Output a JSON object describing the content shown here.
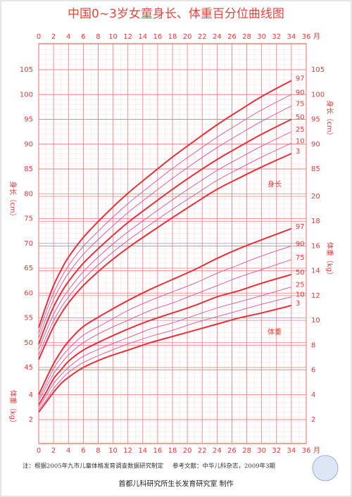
{
  "chart_data": {
    "type": "line",
    "title": "中国0~3岁女童身长、体重百分位曲线图",
    "x": [
      0,
      1,
      2,
      3,
      4,
      6,
      9,
      12,
      15,
      18,
      21,
      24,
      27,
      30,
      34
    ],
    "xlim": [
      0,
      36
    ],
    "xticks": [
      0,
      2,
      4,
      6,
      8,
      10,
      12,
      14,
      16,
      18,
      20,
      22,
      24,
      26,
      28,
      30,
      32,
      34,
      36
    ],
    "x_unit": "月",
    "length": {
      "axis_label": "身长（cm）",
      "curve_label": "身长",
      "ylim": [
        45,
        105
      ],
      "yticks": [
        45,
        50,
        55,
        60,
        65,
        70,
        75,
        80,
        85,
        90,
        95,
        100,
        105
      ],
      "yticks_right": [
        85,
        90,
        95,
        100,
        105
      ],
      "series": [
        {
          "name": "97",
          "color": "#e8303a",
          "values": [
            53.0,
            57.5,
            61.5,
            64.6,
            67.2,
            71.2,
            75.9,
            80.1,
            83.8,
            87.4,
            90.7,
            93.9,
            96.8,
            99.6,
            102.8
          ]
        },
        {
          "name": "90",
          "color": "#d9549a",
          "values": [
            51.9,
            56.2,
            60.0,
            63.0,
            65.5,
            69.4,
            73.9,
            78.0,
            81.6,
            85.1,
            88.3,
            91.4,
            94.2,
            96.9,
            100.0
          ]
        },
        {
          "name": "75",
          "color": "#d9549a",
          "values": [
            50.9,
            55.0,
            58.7,
            61.6,
            64.0,
            67.8,
            72.2,
            76.2,
            79.7,
            83.1,
            86.3,
            89.3,
            92.0,
            94.6,
            97.7
          ]
        },
        {
          "name": "50",
          "color": "#e8303a",
          "values": [
            49.7,
            53.7,
            57.2,
            60.0,
            62.3,
            66.0,
            70.3,
            74.2,
            77.6,
            80.9,
            84.0,
            86.9,
            89.5,
            92.0,
            95.0
          ]
        },
        {
          "name": "25",
          "color": "#d9549a",
          "values": [
            48.6,
            52.3,
            55.7,
            58.4,
            60.6,
            64.3,
            68.6,
            72.3,
            75.6,
            78.8,
            81.8,
            84.7,
            87.2,
            89.6,
            92.5
          ]
        },
        {
          "name": "10",
          "color": "#d9549a",
          "values": [
            47.5,
            51.1,
            54.4,
            57.0,
            59.2,
            62.8,
            67.0,
            70.6,
            73.8,
            76.9,
            79.8,
            82.7,
            85.1,
            87.4,
            90.2
          ]
        },
        {
          "name": "3",
          "color": "#e8303a",
          "values": [
            46.6,
            50.0,
            53.2,
            55.8,
            58.0,
            61.5,
            65.6,
            69.1,
            72.2,
            75.2,
            78.1,
            80.9,
            83.2,
            85.4,
            88.1
          ]
        }
      ]
    },
    "weight": {
      "axis_label": "体重（kg）",
      "curve_label": "体重",
      "ylim": [
        2,
        20
      ],
      "yticks": [
        2,
        4
      ],
      "yticks_right": [
        2,
        4,
        6,
        8,
        10,
        12,
        14,
        16,
        18,
        20
      ],
      "series": [
        {
          "name": "97",
          "color": "#e8303a",
          "values": [
            4.0,
            5.3,
            6.5,
            7.5,
            8.3,
            9.5,
            10.6,
            11.6,
            12.5,
            13.3,
            14.1,
            15.0,
            15.8,
            16.5,
            17.4
          ]
        },
        {
          "name": "90",
          "color": "#d9549a",
          "values": [
            3.7,
            4.9,
            6.1,
            7.0,
            7.7,
            8.8,
            9.8,
            10.8,
            11.6,
            12.3,
            13.0,
            13.8,
            14.5,
            15.2,
            16.0
          ]
        },
        {
          "name": "75",
          "color": "#d9549a",
          "values": [
            3.5,
            4.6,
            5.7,
            6.5,
            7.2,
            8.2,
            9.2,
            10.0,
            10.8,
            11.4,
            12.1,
            12.8,
            13.5,
            14.1,
            14.9
          ]
        },
        {
          "name": "50",
          "color": "#e8303a",
          "values": [
            3.2,
            4.2,
            5.3,
            6.0,
            6.7,
            7.6,
            8.5,
            9.3,
            10.0,
            10.6,
            11.2,
            11.9,
            12.4,
            13.0,
            13.7
          ]
        },
        {
          "name": "25",
          "color": "#d9549a",
          "values": [
            3.0,
            3.9,
            4.9,
            5.6,
            6.2,
            7.1,
            7.9,
            8.6,
            9.3,
            9.8,
            10.4,
            11.0,
            11.5,
            12.0,
            12.7
          ]
        },
        {
          "name": "10",
          "color": "#d9549a",
          "values": [
            2.8,
            3.6,
            4.5,
            5.2,
            5.8,
            6.6,
            7.4,
            8.1,
            8.7,
            9.2,
            9.8,
            10.3,
            10.8,
            11.3,
            11.9
          ]
        },
        {
          "name": "3",
          "color": "#e8303a",
          "values": [
            2.6,
            3.4,
            4.2,
            4.9,
            5.4,
            6.2,
            7.0,
            7.6,
            8.2,
            8.7,
            9.2,
            9.7,
            10.2,
            10.6,
            11.2
          ]
        }
      ]
    },
    "notes": {
      "basis": "注：根据2005年九市儿童体格发育调查数据研究制定",
      "reference": "参考文献：中华儿科杂志，2009年3期",
      "maker": "首都儿科研究所生长发育研究室  制作"
    }
  }
}
